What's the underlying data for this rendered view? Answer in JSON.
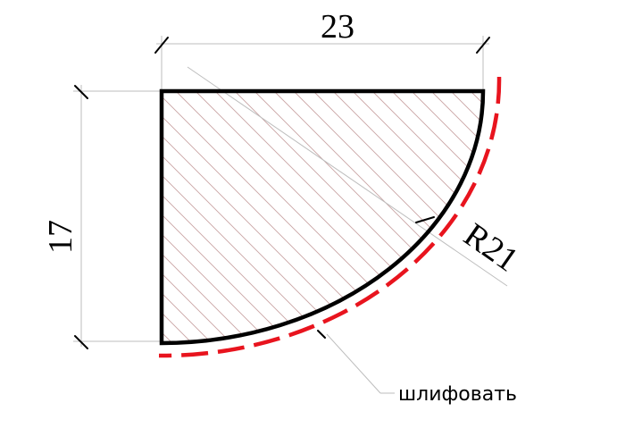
{
  "drawing": {
    "width_dimension": "23",
    "height_dimension": "17",
    "radius_label": "R21",
    "grinding_note": "шлифовать"
  },
  "colors": {
    "outline": "#000000",
    "hatch": "#c9a3a3",
    "grind_line": "#e8141e",
    "thin_line": "#bdbdbd"
  }
}
